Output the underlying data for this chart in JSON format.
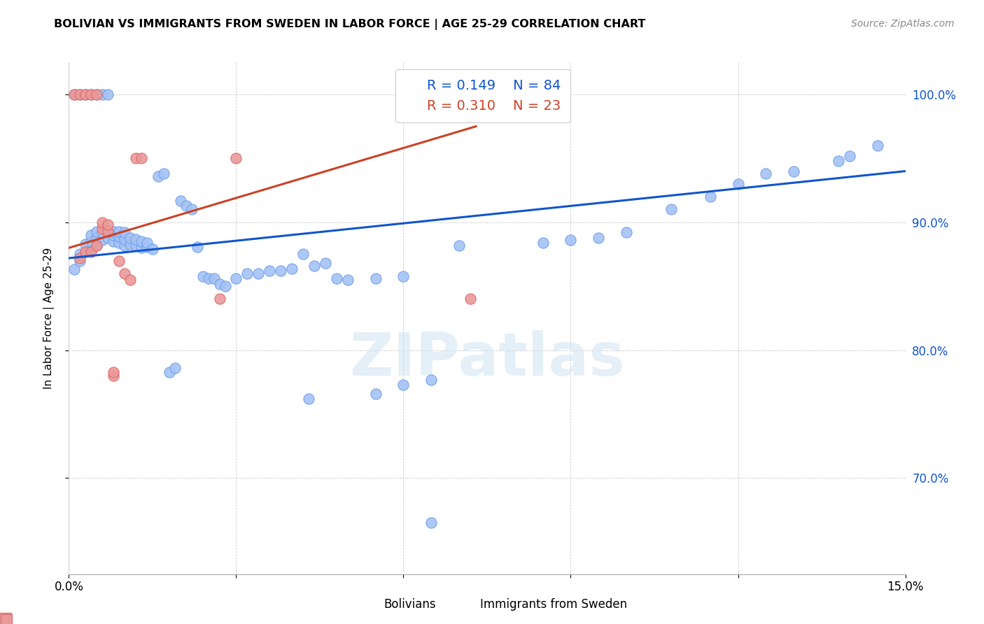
{
  "title": "BOLIVIAN VS IMMIGRANTS FROM SWEDEN IN LABOR FORCE | AGE 25-29 CORRELATION CHART",
  "source": "Source: ZipAtlas.com",
  "ylabel": "In Labor Force | Age 25-29",
  "xlim": [
    0.0,
    0.15
  ],
  "ylim": [
    0.625,
    1.025
  ],
  "xticks": [
    0.0,
    0.03,
    0.06,
    0.09,
    0.12,
    0.15
  ],
  "xticklabels": [
    "0.0%",
    "",
    "",
    "",
    "",
    "15.0%"
  ],
  "yticks": [
    0.7,
    0.8,
    0.9,
    1.0
  ],
  "ytick_labels_right": [
    "70.0%",
    "80.0%",
    "90.0%",
    "100.0%"
  ],
  "blue_R": "0.149",
  "blue_N": "84",
  "pink_R": "0.310",
  "pink_N": "23",
  "blue_color": "#a4c2f4",
  "pink_color": "#ea9999",
  "blue_edge_color": "#6d9eeb",
  "pink_edge_color": "#e06666",
  "blue_line_color": "#1155cc",
  "pink_line_color": "#cc4125",
  "right_tick_color": "#1155cc",
  "watermark": "ZIPatlas",
  "legend_label_blue": "Bolivians",
  "legend_label_pink": "Immigrants from Sweden",
  "blue_trend_x": [
    0.0,
    0.15
  ],
  "blue_trend_y": [
    0.872,
    0.94
  ],
  "pink_trend_x": [
    0.0,
    0.073
  ],
  "pink_trend_y": [
    0.88,
    0.975
  ],
  "blue_x": [
    0.001,
    0.001,
    0.002,
    0.002,
    0.002,
    0.003,
    0.003,
    0.003,
    0.004,
    0.004,
    0.004,
    0.004,
    0.005,
    0.005,
    0.005,
    0.005,
    0.006,
    0.006,
    0.006,
    0.007,
    0.007,
    0.007,
    0.008,
    0.008,
    0.008,
    0.009,
    0.009,
    0.009,
    0.01,
    0.01,
    0.01,
    0.011,
    0.011,
    0.012,
    0.012,
    0.013,
    0.013,
    0.014,
    0.014,
    0.015,
    0.016,
    0.017,
    0.018,
    0.019,
    0.02,
    0.021,
    0.022,
    0.023,
    0.024,
    0.025,
    0.026,
    0.027,
    0.028,
    0.03,
    0.032,
    0.034,
    0.036,
    0.038,
    0.04,
    0.042,
    0.044,
    0.046,
    0.048,
    0.05,
    0.055,
    0.06,
    0.065,
    0.07,
    0.085,
    0.09,
    0.095,
    0.1,
    0.108,
    0.115,
    0.12,
    0.125,
    0.13,
    0.138,
    0.14,
    0.145,
    0.06,
    0.065,
    0.043,
    0.055
  ],
  "blue_y": [
    1.0,
    0.863,
    1.0,
    0.87,
    0.875,
    1.0,
    0.877,
    0.883,
    1.0,
    0.878,
    0.885,
    0.89,
    1.0,
    0.882,
    0.888,
    0.893,
    1.0,
    0.886,
    0.892,
    1.0,
    0.888,
    0.894,
    0.885,
    0.89,
    0.893,
    0.884,
    0.889,
    0.893,
    0.882,
    0.887,
    0.892,
    0.883,
    0.888,
    0.882,
    0.887,
    0.88,
    0.885,
    0.881,
    0.884,
    0.879,
    0.936,
    0.938,
    0.783,
    0.786,
    0.917,
    0.913,
    0.91,
    0.881,
    0.858,
    0.856,
    0.856,
    0.852,
    0.85,
    0.856,
    0.86,
    0.86,
    0.862,
    0.862,
    0.864,
    0.875,
    0.866,
    0.868,
    0.856,
    0.855,
    0.856,
    0.858,
    0.665,
    0.882,
    0.884,
    0.886,
    0.888,
    0.892,
    0.91,
    0.92,
    0.93,
    0.938,
    0.94,
    0.948,
    0.952,
    0.96,
    0.773,
    0.777,
    0.762,
    0.766
  ],
  "pink_x": [
    0.001,
    0.002,
    0.002,
    0.003,
    0.003,
    0.004,
    0.004,
    0.005,
    0.005,
    0.006,
    0.006,
    0.007,
    0.007,
    0.008,
    0.008,
    0.009,
    0.01,
    0.011,
    0.012,
    0.013,
    0.027,
    0.03,
    0.072
  ],
  "pink_y": [
    1.0,
    1.0,
    0.872,
    1.0,
    0.877,
    1.0,
    0.877,
    1.0,
    0.882,
    0.895,
    0.9,
    0.893,
    0.898,
    0.78,
    0.783,
    0.87,
    0.86,
    0.855,
    0.95,
    0.95,
    0.84,
    0.95,
    0.84
  ]
}
